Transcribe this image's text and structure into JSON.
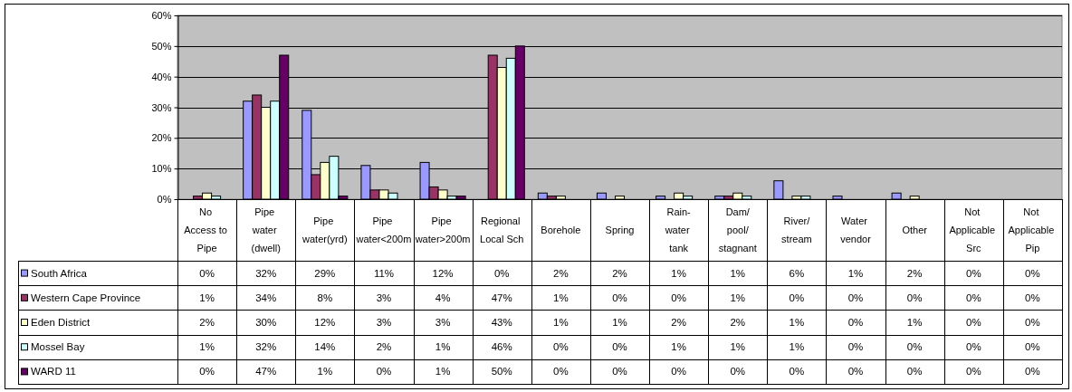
{
  "chart_data": {
    "type": "bar",
    "categories": [
      "No Access to Pipe",
      "Pipe water (dwell)",
      "Pipe water(yrd)",
      "Pipe water<200m",
      "Pipe water>200m",
      "Regional Local Sch",
      "Borehole",
      "Spring",
      "Rain-water tank",
      "Dam/pool/stagnant",
      "River/stream",
      "Water vendor",
      "Other",
      "Not Applicable Src",
      "Not Applicable Pip"
    ],
    "series": [
      {
        "name": "South Africa",
        "color": "#9999ff",
        "values": [
          0,
          32,
          29,
          11,
          12,
          0,
          2,
          2,
          1,
          1,
          6,
          1,
          2,
          0,
          0
        ],
        "value_labels": [
          "0%",
          "32%",
          "29%",
          "11%",
          "12%",
          "0%",
          "2%",
          "2%",
          "1%",
          "1%",
          "6%",
          "1%",
          "2%",
          "0%",
          "0%"
        ]
      },
      {
        "name": "Western Cape Province",
        "color": "#993366",
        "values": [
          1,
          34,
          8,
          3,
          4,
          47,
          1,
          0,
          0,
          1,
          0,
          0,
          0,
          0,
          0
        ],
        "value_labels": [
          "1%",
          "34%",
          "8%",
          "3%",
          "4%",
          "47%",
          "1%",
          "0%",
          "0%",
          "1%",
          "0%",
          "0%",
          "0%",
          "0%",
          "0%"
        ]
      },
      {
        "name": "Eden District",
        "color": "#ffffcc",
        "values": [
          2,
          30,
          12,
          3,
          3,
          43,
          1,
          1,
          2,
          2,
          1,
          0,
          1,
          0,
          0
        ],
        "value_labels": [
          "2%",
          "30%",
          "12%",
          "3%",
          "3%",
          "43%",
          "1%",
          "1%",
          "2%",
          "2%",
          "1%",
          "0%",
          "1%",
          "0%",
          "0%"
        ]
      },
      {
        "name": "Mossel Bay",
        "color": "#ccffff",
        "values": [
          1,
          32,
          14,
          2,
          1,
          46,
          0,
          0,
          1,
          1,
          1,
          0,
          0,
          0,
          0
        ],
        "value_labels": [
          "1%",
          "32%",
          "14%",
          "2%",
          "1%",
          "46%",
          "0%",
          "0%",
          "1%",
          "1%",
          "1%",
          "0%",
          "0%",
          "0%",
          "0%"
        ]
      },
      {
        "name": "WARD 11",
        "color": "#660066",
        "values": [
          0,
          47,
          1,
          0,
          1,
          50,
          0,
          0,
          0,
          0,
          0,
          0,
          0,
          0,
          0
        ],
        "value_labels": [
          "0%",
          "47%",
          "1%",
          "0%",
          "1%",
          "50%",
          "0%",
          "0%",
          "0%",
          "0%",
          "0%",
          "0%",
          "0%",
          "0%",
          "0%"
        ]
      }
    ],
    "ylim": [
      0,
      60
    ],
    "yticks": [
      {
        "value": 0,
        "label": "0%"
      },
      {
        "value": 10,
        "label": "10%"
      },
      {
        "value": 20,
        "label": "20%"
      },
      {
        "value": 30,
        "label": "30%"
      },
      {
        "value": 40,
        "label": "40%"
      },
      {
        "value": 50,
        "label": "50%"
      },
      {
        "value": 60,
        "label": "60%"
      }
    ],
    "grid": "y",
    "legend": "bottom"
  }
}
